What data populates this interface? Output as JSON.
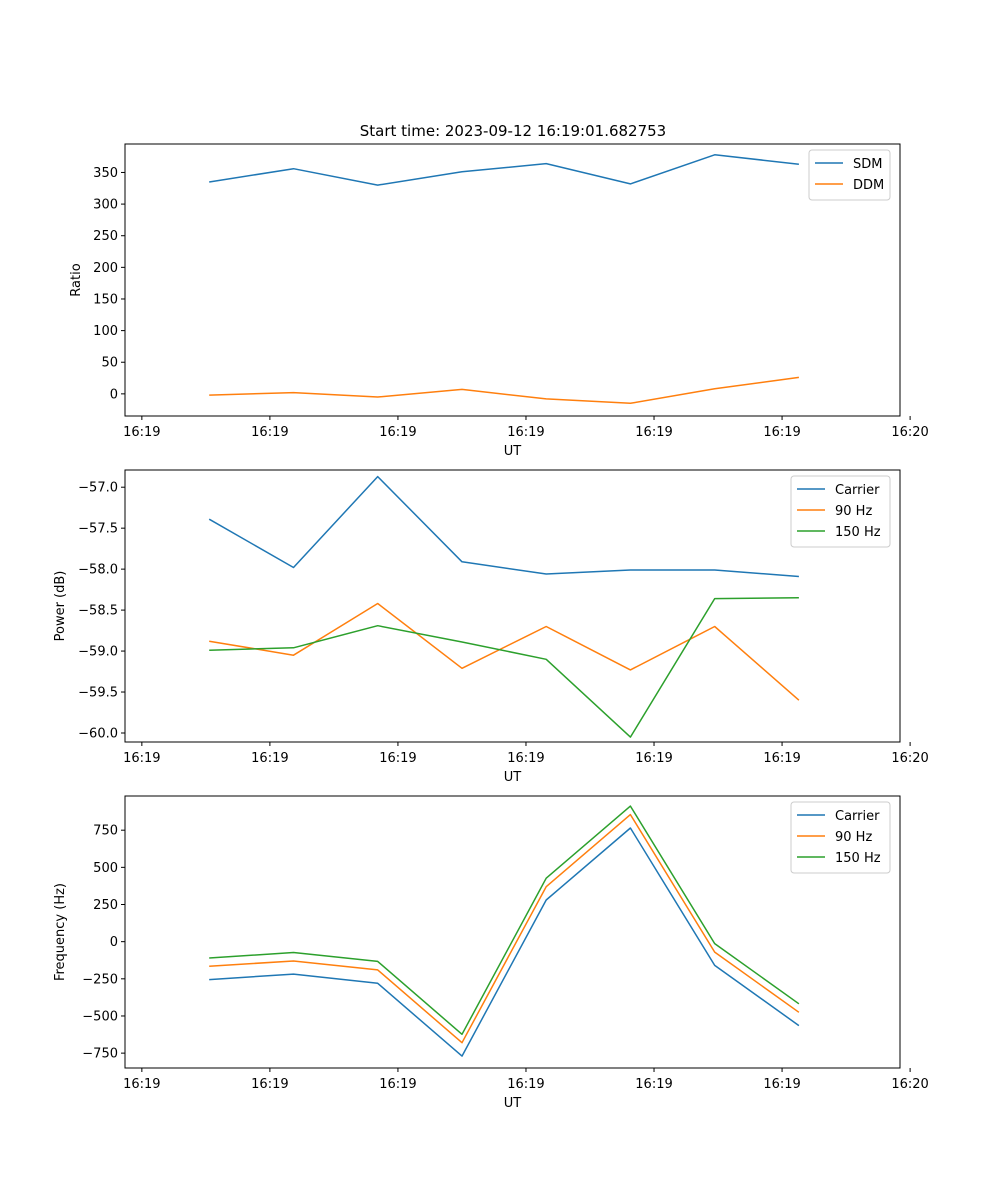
{
  "title": "Start time: 2023-09-12 16:19:01.682753",
  "colors": {
    "c0": "#1f77b4",
    "c1": "#ff7f0e",
    "c2": "#2ca02c"
  },
  "chart_data": [
    {
      "type": "line",
      "title": "Start time: 2023-09-12 16:19:01.682753",
      "xlabel": "UT",
      "ylabel": "Ratio",
      "x": [
        1,
        2,
        3,
        4,
        5,
        6,
        7,
        8
      ],
      "xlim": [
        0,
        9.2
      ],
      "xticks": [
        0.2,
        1.72,
        3.24,
        4.76,
        6.28,
        7.8,
        9.32
      ],
      "xtick_labels": [
        "16:19",
        "16:19",
        "16:19",
        "16:19",
        "16:19",
        "16:19",
        "16:20"
      ],
      "ylim": [
        -35,
        395
      ],
      "yticks": [
        0,
        50,
        100,
        150,
        200,
        250,
        300,
        350
      ],
      "ytick_labels": [
        "0",
        "50",
        "100",
        "150",
        "200",
        "250",
        "300",
        "350"
      ],
      "legend": "top-right",
      "grid": false,
      "series": [
        {
          "name": "SDM",
          "color": "#1f77b4",
          "values": [
            335,
            356,
            330,
            351,
            364,
            332,
            378,
            363
          ]
        },
        {
          "name": "DDM",
          "color": "#ff7f0e",
          "values": [
            -2,
            2,
            -5,
            7,
            -8,
            -15,
            8,
            26
          ]
        }
      ]
    },
    {
      "type": "line",
      "xlabel": "UT",
      "ylabel": "Power (dB)",
      "x": [
        1,
        2,
        3,
        4,
        5,
        6,
        7,
        8
      ],
      "xlim": [
        0,
        9.2
      ],
      "xticks": [
        0.2,
        1.72,
        3.24,
        4.76,
        6.28,
        7.8,
        9.32
      ],
      "xtick_labels": [
        "16:19",
        "16:19",
        "16:19",
        "16:19",
        "16:19",
        "16:19",
        "16:20"
      ],
      "ylim": [
        -60.11,
        -56.79
      ],
      "yticks": [
        -60.0,
        -59.5,
        -59.0,
        -58.5,
        -58.0,
        -57.5,
        -57.0
      ],
      "ytick_labels": [
        "−60.0",
        "−59.5",
        "−59.0",
        "−58.5",
        "−58.0",
        "−57.5",
        "−57.0"
      ],
      "legend": "top-right",
      "grid": false,
      "series": [
        {
          "name": "Carrier",
          "color": "#1f77b4",
          "values": [
            -57.39,
            -57.98,
            -56.87,
            -57.91,
            -58.06,
            -58.01,
            -58.01,
            -58.09
          ]
        },
        {
          "name": "90 Hz",
          "color": "#ff7f0e",
          "values": [
            -58.88,
            -59.05,
            -58.42,
            -59.21,
            -58.7,
            -59.23,
            -58.7,
            -59.6
          ]
        },
        {
          "name": "150 Hz",
          "color": "#2ca02c",
          "values": [
            -58.99,
            -58.96,
            -58.69,
            -58.89,
            -59.1,
            -60.05,
            -58.36,
            -58.35
          ]
        }
      ]
    },
    {
      "type": "line",
      "xlabel": "UT",
      "ylabel": "Frequency (Hz)",
      "x": [
        1,
        2,
        3,
        4,
        5,
        6,
        7,
        8
      ],
      "xlim": [
        0,
        9.2
      ],
      "xticks": [
        0.2,
        1.72,
        3.24,
        4.76,
        6.28,
        7.8,
        9.32
      ],
      "xtick_labels": [
        "16:19",
        "16:19",
        "16:19",
        "16:19",
        "16:19",
        "16:19",
        "16:20"
      ],
      "ylim": [
        -850,
        980
      ],
      "yticks": [
        -750,
        -500,
        -250,
        0,
        250,
        500,
        750
      ],
      "ytick_labels": [
        "−750",
        "−500",
        "−250",
        "0",
        "250",
        "500",
        "750"
      ],
      "legend": "top-right",
      "grid": false,
      "series": [
        {
          "name": "Carrier",
          "color": "#1f77b4",
          "values": [
            -255,
            -218,
            -280,
            -770,
            280,
            765,
            -160,
            -565
          ]
        },
        {
          "name": "90 Hz",
          "color": "#ff7f0e",
          "values": [
            -165,
            -130,
            -190,
            -680,
            370,
            855,
            -70,
            -475
          ]
        },
        {
          "name": "150 Hz",
          "color": "#2ca02c",
          "values": [
            -110,
            -73,
            -133,
            -623,
            427,
            912,
            -13,
            -418
          ]
        }
      ]
    }
  ]
}
